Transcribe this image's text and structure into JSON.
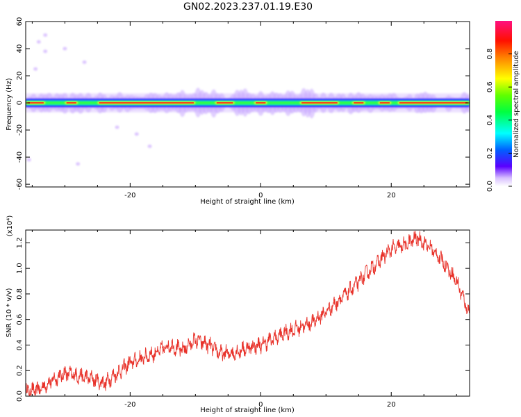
{
  "title": "GN02.2023.237.01.19.E30",
  "chart_data": [
    {
      "type": "heatmap",
      "xlabel": "Height of straight line (km)",
      "ylabel": "Frequency (Hz)",
      "xlim": [
        -36,
        32
      ],
      "ylim": [
        -62,
        60
      ],
      "xticks": [
        -20,
        0,
        20
      ],
      "xtick_labels": [
        "-20",
        "0",
        "20"
      ],
      "yticks": [
        -60,
        -40,
        -20,
        0,
        20,
        40,
        60
      ],
      "ytick_labels": [
        "-60",
        "-40",
        "-20",
        "0",
        "20",
        "40",
        "60"
      ],
      "colorbar": {
        "label": "Normalized spectral amplitude",
        "range": [
          0,
          1
        ],
        "ticks": [
          0.0,
          0.2,
          0.4,
          0.6,
          0.8
        ],
        "tick_labels": [
          "0.0",
          "0.2",
          "0.4",
          "0.6",
          "0.8"
        ]
      },
      "band_center_hz": 0,
      "band_strong_segments_km": [
        [
          -36,
          -33
        ],
        [
          -30,
          -28
        ],
        [
          -25,
          -10
        ],
        [
          -7,
          -4
        ],
        [
          -1,
          1
        ],
        [
          6,
          12
        ],
        [
          14,
          16
        ],
        [
          18,
          20
        ],
        [
          21,
          32
        ]
      ],
      "scatter_patches": [
        {
          "x": -34,
          "y": 45,
          "amp": 0.1
        },
        {
          "x": -33,
          "y": 50,
          "amp": 0.08
        },
        {
          "x": -34.5,
          "y": 25,
          "amp": 0.1
        },
        {
          "x": -35.5,
          "y": -42,
          "amp": 0.1
        },
        {
          "x": -33,
          "y": 38,
          "amp": 0.06
        },
        {
          "x": -28,
          "y": -45,
          "amp": 0.06
        },
        {
          "x": -22,
          "y": -18,
          "amp": 0.1
        },
        {
          "x": -19,
          "y": -23,
          "amp": 0.1
        },
        {
          "x": -17,
          "y": -32,
          "amp": 0.06
        },
        {
          "x": -30,
          "y": 40,
          "amp": 0.05
        },
        {
          "x": -27,
          "y": 30,
          "amp": 0.06
        }
      ]
    },
    {
      "type": "line",
      "xlabel": "Height of straight line (km)",
      "ylabel": "SNR (10 * v/v)",
      "y_multiplier": "(x10⁴)",
      "xlim": [
        -36,
        32
      ],
      "ylim": [
        0,
        1.3
      ],
      "xticks": [
        -20,
        0,
        20
      ],
      "xtick_labels": [
        "-20",
        "0",
        "20"
      ],
      "yticks": [
        0.0,
        0.2,
        0.4,
        0.6,
        0.8,
        1.0,
        1.2
      ],
      "ytick_labels": [
        "0.0",
        "0.2",
        "0.4",
        "0.6",
        "0.8",
        "1.0",
        "1.2"
      ],
      "series_color": "#e8322a",
      "x": [
        -36,
        -34,
        -32,
        -30,
        -28,
        -26,
        -24,
        -22,
        -20,
        -18,
        -16,
        -14,
        -12,
        -10,
        -8,
        -6,
        -4,
        -2,
        0,
        2,
        4,
        6,
        8,
        10,
        12,
        14,
        16,
        18,
        20,
        22,
        24,
        26,
        28,
        30,
        32
      ],
      "y": [
        0.04,
        0.05,
        0.12,
        0.18,
        0.16,
        0.14,
        0.1,
        0.18,
        0.26,
        0.3,
        0.34,
        0.4,
        0.36,
        0.44,
        0.4,
        0.33,
        0.34,
        0.38,
        0.4,
        0.45,
        0.5,
        0.54,
        0.58,
        0.66,
        0.75,
        0.84,
        0.95,
        1.05,
        1.15,
        1.18,
        1.24,
        1.16,
        1.05,
        0.9,
        0.64
      ]
    }
  ]
}
